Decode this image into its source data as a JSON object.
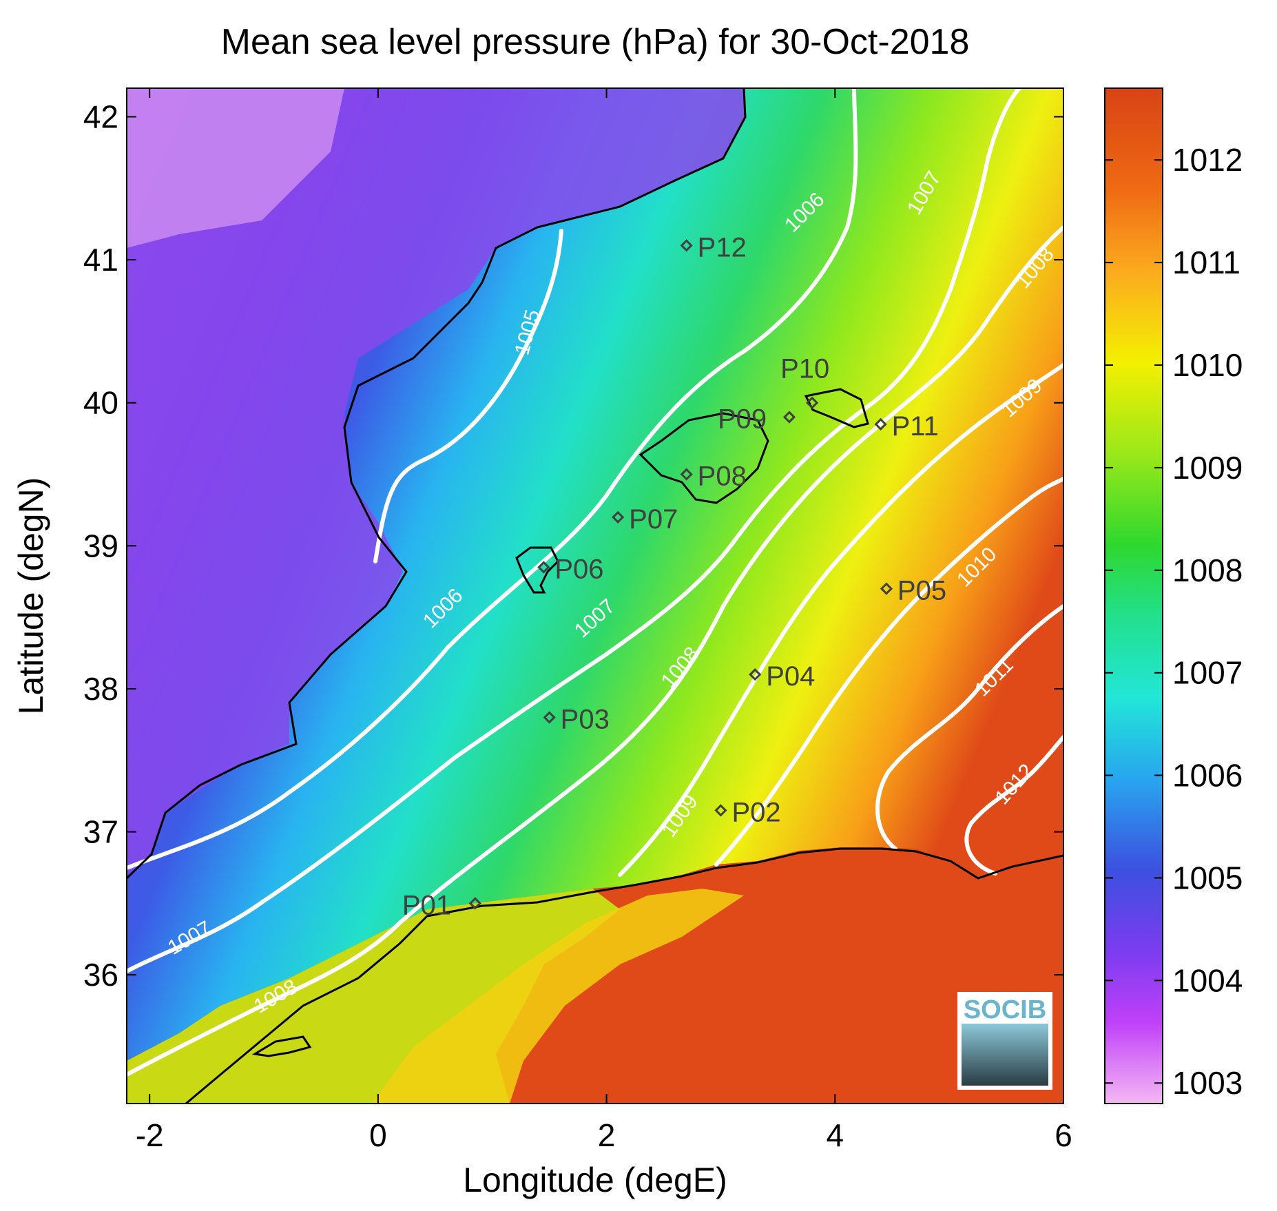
{
  "title": "Mean sea level pressure (hPa) for 30-Oct-2018",
  "xlabel": "Longitude (degE)",
  "ylabel": "Latitude (degN)",
  "x_ticks": [
    "-2",
    "0",
    "2",
    "4",
    "6"
  ],
  "y_ticks": [
    "42",
    "41",
    "40",
    "39",
    "38",
    "37",
    "36"
  ],
  "colorbar_ticks": [
    "1012",
    "1011",
    "1010",
    "1009",
    "1008",
    "1007",
    "1006",
    "1005",
    "1004",
    "1003"
  ],
  "colorbar_colors": [
    "#d84315",
    "#f97316",
    "#fbbf24",
    "#f0f000",
    "#b6f010",
    "#2ed82e",
    "#22e090",
    "#22e6d8",
    "#28a8f0",
    "#3c50e0",
    "#7c3cf0",
    "#c040f8",
    "#f4b8f4"
  ],
  "contour_labels": [
    "1005",
    "1006",
    "1006",
    "1007",
    "1007",
    "1007",
    "1008",
    "1008",
    "1008",
    "1009",
    "1009",
    "1010",
    "1011",
    "1012"
  ],
  "stations": [
    {
      "name": "P01",
      "lon": 0.85,
      "lat": 36.5
    },
    {
      "name": "P02",
      "lon": 3.0,
      "lat": 37.15
    },
    {
      "name": "P03",
      "lon": 1.5,
      "lat": 37.8
    },
    {
      "name": "P04",
      "lon": 3.3,
      "lat": 38.1
    },
    {
      "name": "P05",
      "lon": 4.45,
      "lat": 38.7
    },
    {
      "name": "P06",
      "lon": 1.45,
      "lat": 38.85
    },
    {
      "name": "P07",
      "lon": 2.1,
      "lat": 39.2
    },
    {
      "name": "P08",
      "lon": 2.7,
      "lat": 39.5
    },
    {
      "name": "P09",
      "lon": 3.6,
      "lat": 39.9
    },
    {
      "name": "P10",
      "lon": 3.8,
      "lat": 40.0
    },
    {
      "name": "P11",
      "lon": 4.4,
      "lat": 39.85
    },
    {
      "name": "P12",
      "lon": 2.7,
      "lat": 41.1
    }
  ],
  "logo_text": "SOCIB",
  "colors": {
    "contour": "#ffffff",
    "coast": "#000000",
    "station": "#404040"
  }
}
